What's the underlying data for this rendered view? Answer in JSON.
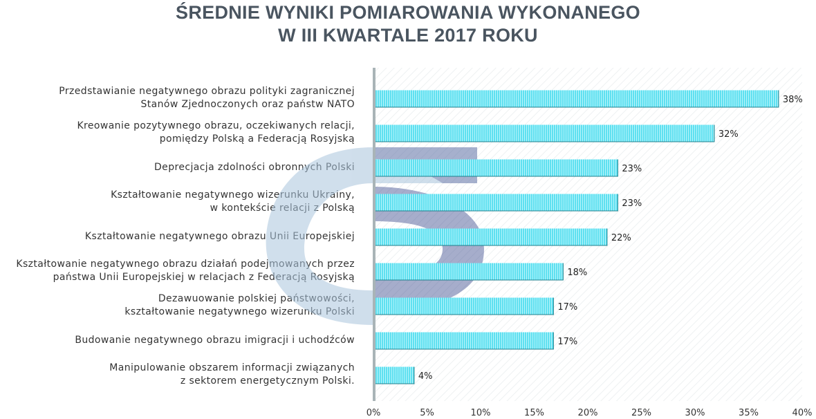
{
  "chart_data": {
    "type": "bar",
    "orientation": "horizontal",
    "title": "ŚREDNIE WYNIKI POMIAROWANIA WYKONANEGO W III KWARTALE 2017 ROKU",
    "title_lines": [
      "ŚREDNIE WYNIKI POMIAROWANIA WYKONANEGO",
      "W III KWARTALE 2017 ROKU"
    ],
    "categories": [
      [
        "Przedstawianie negatywnego obrazu polityki zagranicznej",
        "Stanów Zjednoczonych oraz państw NATO"
      ],
      [
        "Kreowanie pozytywnego obrazu, oczekiwanych relacji,",
        "pomiędzy Polską a Federacją Rosyjską"
      ],
      [
        "Deprecjacja zdolności obronnych Polski"
      ],
      [
        "Kształtowanie negatywnego wizerunku Ukrainy,",
        "w kontekście relacji z Polską"
      ],
      [
        "Kształtowanie negatywnego obrazu Unii Europejskiej"
      ],
      [
        "Kształtowanie negatywnego obrazu działań podejmowanych przez",
        "państwa Unii Europejskiej w relacjach z Federacją Rosyjską"
      ],
      [
        "Dezawuowanie polskiej państwowości,",
        "kształtowanie negatywnego wizerunku Polski"
      ],
      [
        "Budowanie negatywnego obrazu imigracji i uchodźców"
      ],
      [
        "Manipulowanie obszarem informacji związanych",
        "z sektorem energetycznym Polski."
      ]
    ],
    "values": [
      37.8,
      31.8,
      22.8,
      22.8,
      21.8,
      17.7,
      16.8,
      16.8,
      3.8
    ],
    "value_labels": [
      "38%",
      "32%",
      "23%",
      "23%",
      "22%",
      "18%",
      "17%",
      "17%",
      "4%"
    ],
    "xlim": [
      0,
      40
    ],
    "x_ticks": [
      "0%",
      "5%",
      "10%",
      "15%",
      "20%",
      "25%",
      "30%",
      "35%",
      "40%"
    ],
    "xlabel": "",
    "ylabel": "",
    "grid": false,
    "bar_color": "#5ee0f0",
    "bar_stripe_color": "#b8f4fb",
    "axis_color": "#a9b4b7"
  }
}
